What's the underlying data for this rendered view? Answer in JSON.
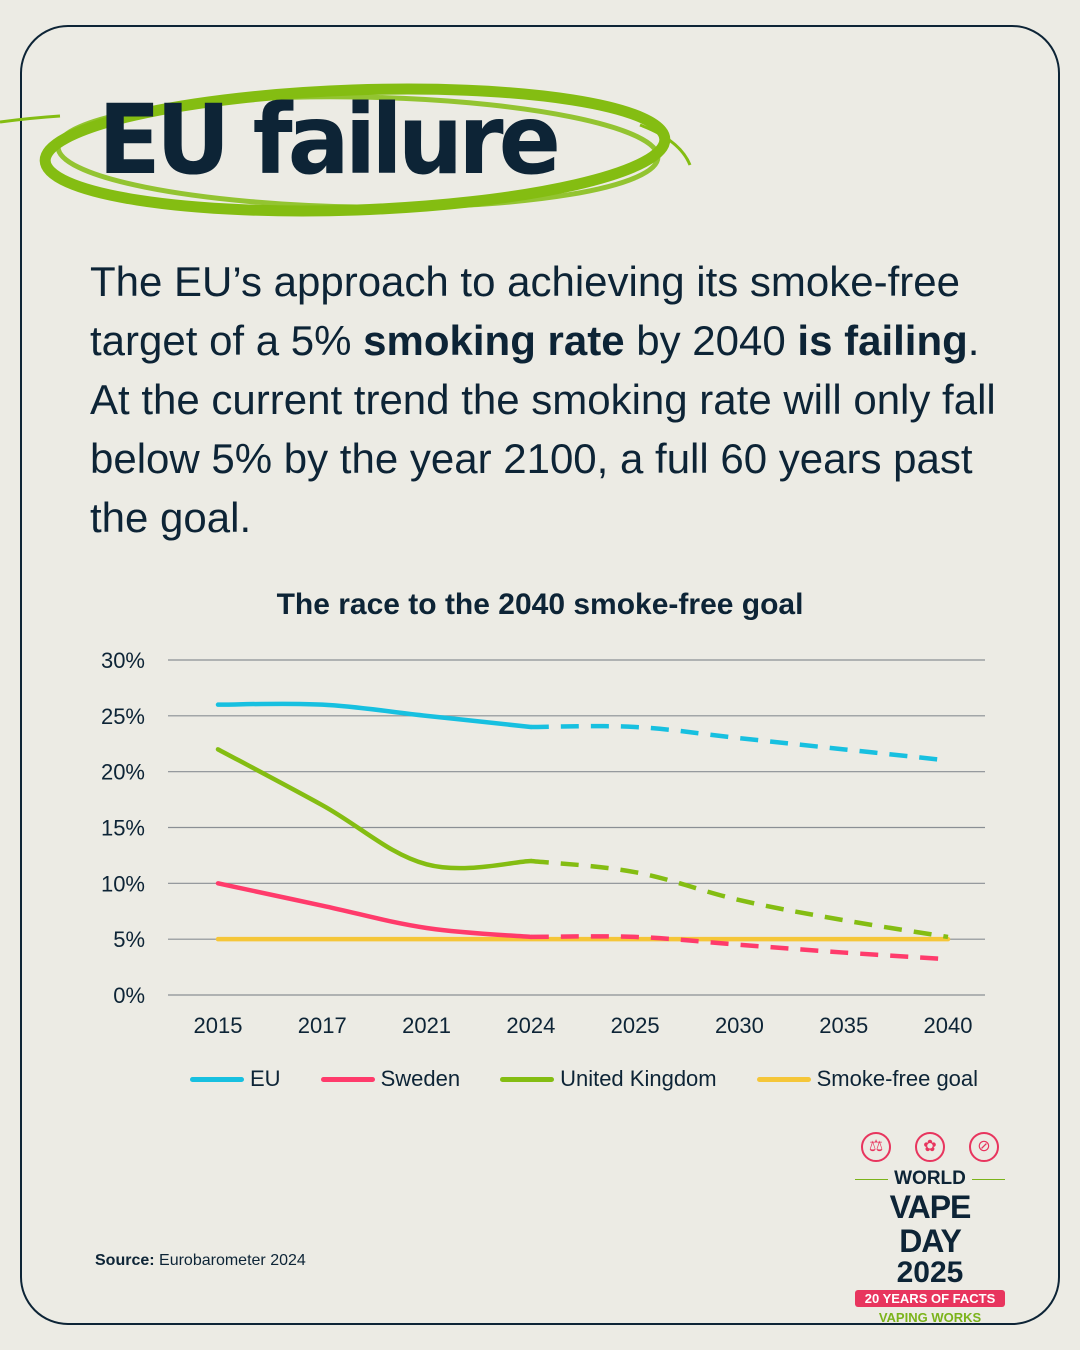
{
  "title": "EU failure",
  "intro": {
    "p1": "The EU’s approach to achieving its smoke-free target of a 5% ",
    "b1": "smoking rate",
    "p2": " by 2040 ",
    "b2": "is failing",
    "p3": ". At the current trend the smoking rate will only fall below 5% by the year 2100, a full 60 years past the goal."
  },
  "chart_data": {
    "type": "line",
    "title": "The race to the 2040 smoke-free goal",
    "categories": [
      "2015",
      "2017",
      "2021",
      "2024",
      "2025",
      "2030",
      "2035",
      "2040"
    ],
    "y_ticks": [
      "0%",
      "5%",
      "10%",
      "15%",
      "20%",
      "25%",
      "30%"
    ],
    "ylim": [
      0,
      30
    ],
    "unit": "%",
    "grid": true,
    "legend_position": "bottom",
    "projection_starts_at": "2024",
    "projection_style": "dashed",
    "series": [
      {
        "name": "EU",
        "color": "#17c0e0",
        "values": [
          26,
          26,
          25,
          24,
          24,
          23,
          22,
          21
        ]
      },
      {
        "name": "Sweden",
        "color": "#ff3b6b",
        "values": [
          10,
          8,
          6,
          5.2,
          5.2,
          4.5,
          3.8,
          3.2
        ]
      },
      {
        "name": "United Kingdom",
        "color": "#84bd12",
        "values": [
          22,
          17,
          11.7,
          12,
          11,
          8.5,
          6.7,
          5.2
        ]
      },
      {
        "name": "Smoke-free goal",
        "color": "#f5c638",
        "values": [
          5,
          5,
          5,
          5,
          5,
          5,
          5,
          5
        ]
      }
    ]
  },
  "source": {
    "label": "Source:",
    "text": "Eurobarometer 2024"
  },
  "logo": {
    "line1": "WORLD",
    "line2": "VAPE DAY",
    "line3": "2025",
    "badge": "20 YEARS OF FACTS",
    "tagline": "VAPING WORKS",
    "icons": [
      "microscope-icon",
      "strawberry-icon",
      "no-smoking-icon"
    ],
    "pink": "#e8355e",
    "green": "#7bb31a"
  }
}
